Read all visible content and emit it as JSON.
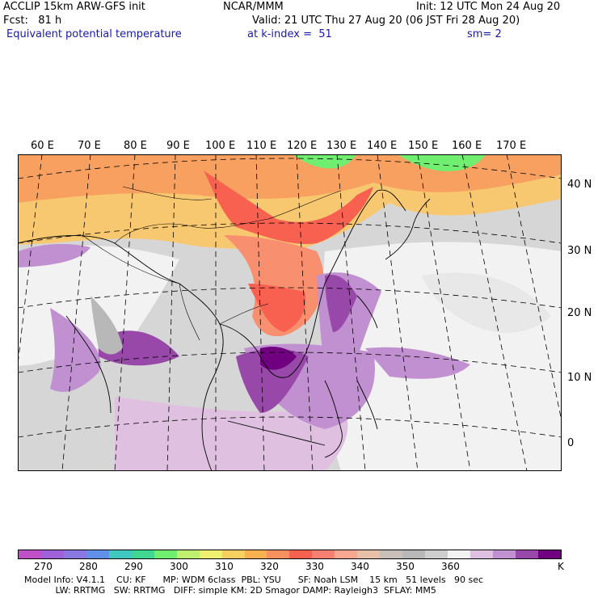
{
  "header": {
    "model": "ACCLIP 15km ARW-GFS init",
    "org": "NCAR/MMM",
    "init": "Init: 12 UTC Mon 24 Aug 20",
    "fcst": "Fcst:   81 h",
    "valid": "Valid: 21 UTC Thu 27 Aug 20 (06 JST Fri 28 Aug 20)",
    "field": "Equivalent potential temperature",
    "level": "at k-index =  51",
    "smooth": "sm= 2"
  },
  "map": {
    "lon_labels": [
      "60 E",
      "70 E",
      "80 E",
      "90 E",
      "100 E",
      "110 E",
      "120 E",
      "130 E",
      "140 E",
      "150 E",
      "160 E",
      "170 E"
    ],
    "lat_labels": [
      "40 N",
      "30 N",
      "20 N",
      "10 N",
      "0"
    ]
  },
  "colorbar": {
    "colors": [
      "#c050c8",
      "#a060d8",
      "#8878e0",
      "#6090e8",
      "#40c8c0",
      "#40d890",
      "#70ee70",
      "#c0f070",
      "#f0f070",
      "#f8d060",
      "#f8b050",
      "#f89060",
      "#f86050",
      "#f88070",
      "#f8a890",
      "#e8c0a8",
      "#c8c0b8",
      "#b8b8b8",
      "#cecece",
      "#f2f2f2",
      "#e0c0e0",
      "#c090d0",
      "#9848a8",
      "#700080"
    ],
    "labels": [
      "270",
      "280",
      "290",
      "300",
      "310",
      "320",
      "330",
      "340",
      "350",
      "360"
    ],
    "unit": "K"
  },
  "footer": {
    "line1": "Model Info: V4.1.1    CU: KF      MP: WDM 6class  PBL: YSU      SF: Noah LSM    15 km   51 levels   90 sec",
    "line2": "           LW: RRTMG   SW: RRTMG   DIFF: simple KM: 2D Smagor DAMP: Rayleigh3  SFLAY: MM5"
  }
}
